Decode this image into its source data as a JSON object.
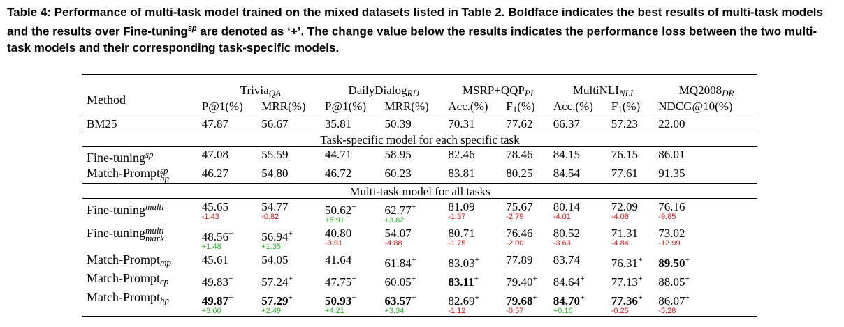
{
  "caption": {
    "part1": "Table 4: Performance of multi-task model trained on the mixed datasets listed in Table 2. Boldface indicates the best results of multi-task models and the results over Fine-tuning",
    "sup": "sp",
    "part2": " are denoted as ‘+’. The change value below the results indicates the performance loss between the two multi-task models and their corresponding task-specific models."
  },
  "header": {
    "method": "Method",
    "groups": [
      {
        "name": "Trivia",
        "sub": "QA"
      },
      {
        "name": "DailyDialog",
        "sub": "RD"
      },
      {
        "name": "MSRP+QQP",
        "sub": "PI"
      },
      {
        "name": "MultiNLI",
        "sub": "NLI"
      },
      {
        "name": "MQ2008",
        "sub": "DR"
      }
    ],
    "metrics": [
      "P@1(%)",
      "MRR(%)",
      "P@1(%)",
      "MRR(%)",
      "Acc.(%)",
      "F",
      "Acc.(%)",
      "F",
      "NDCG@10(%)"
    ],
    "f_sub": "1",
    "f_suffix": "(%)"
  },
  "bm25": {
    "name": "BM25",
    "values": [
      "47.87",
      "56.67",
      "35.81",
      "50.39",
      "70.31",
      "77.62",
      "66.37",
      "57.23",
      "22.00"
    ]
  },
  "section1": "Task-specific model for each specific task",
  "section2": "Multi-task model for all tasks",
  "specific_rows": [
    {
      "name": "Fine-tuning",
      "sup": "sp",
      "values": [
        "47.08",
        "55.59",
        "44.71",
        "58.95",
        "82.46",
        "78.46",
        "84.15",
        "76.15",
        "86.01"
      ]
    },
    {
      "name": "Match-Prompt",
      "sup": "sp",
      "sub": "hp",
      "values": [
        "46.27",
        "54.80",
        "46.72",
        "60.23",
        "83.81",
        "80.25",
        "84.54",
        "77.61",
        "91.35"
      ]
    }
  ],
  "multi_rows": [
    {
      "name": "Fine-tuning",
      "sup": "multi",
      "values": [
        "45.65",
        "54.77",
        "50.62",
        "62.77",
        "81.09",
        "75.67",
        "80.14",
        "72.09",
        "76.16"
      ],
      "plus": [
        false,
        false,
        true,
        true,
        false,
        false,
        false,
        false,
        false
      ],
      "bold": [
        false,
        false,
        false,
        false,
        false,
        false,
        false,
        false,
        false
      ],
      "deltas": [
        "-1.43",
        "-0.82",
        "+5.91",
        "+3.82",
        "-1.37",
        "-2.79",
        "-4.01",
        "-4.06",
        "-9.85"
      ]
    },
    {
      "name": "Fine-tuning",
      "sup": "multi",
      "sub": "mark",
      "values": [
        "48.56",
        "56.94",
        "40.80",
        "54.07",
        "80.71",
        "76.46",
        "80.52",
        "71.31",
        "73.02"
      ],
      "plus": [
        true,
        true,
        false,
        false,
        false,
        false,
        false,
        false,
        false
      ],
      "bold": [
        false,
        false,
        false,
        false,
        false,
        false,
        false,
        false,
        false
      ],
      "deltas": [
        "+1.48",
        "+1.35",
        "-3.91",
        "-4.88",
        "-1.75",
        "-2.00",
        "-3.63",
        "-4.84",
        "-12.99"
      ]
    },
    {
      "name": "Match-Prompt",
      "sub": "mp",
      "values": [
        "45.61",
        "54.05",
        "41.64",
        "61.84",
        "83.03",
        "77.89",
        "83.74",
        "76.31",
        "89.50"
      ],
      "plus": [
        false,
        false,
        false,
        true,
        true,
        false,
        false,
        true,
        true
      ],
      "bold": [
        false,
        false,
        false,
        false,
        false,
        false,
        false,
        false,
        true
      ]
    },
    {
      "name": "Match-Prompt",
      "sub": "cp",
      "values": [
        "49.83",
        "57.24",
        "47.75",
        "60.05",
        "83.11",
        "79.40",
        "84.64",
        "77.13",
        "88.05"
      ],
      "plus": [
        true,
        true,
        true,
        true,
        true,
        true,
        true,
        true,
        true
      ],
      "bold": [
        false,
        false,
        false,
        false,
        true,
        false,
        false,
        false,
        false
      ]
    },
    {
      "name": "Match-Prompt",
      "sub": "hp",
      "values": [
        "49.87",
        "57.29",
        "50.93",
        "63.57",
        "82.69",
        "79.68",
        "84.70",
        "77.36",
        "86.07"
      ],
      "plus": [
        true,
        true,
        true,
        true,
        true,
        true,
        true,
        true,
        true
      ],
      "bold": [
        true,
        true,
        true,
        true,
        false,
        true,
        true,
        true,
        false
      ],
      "deltas": [
        "+3.60",
        "+2.49",
        "+4.21",
        "+3.34",
        "-1.12",
        "-0.57",
        "+0.16",
        "-0.25",
        "-5.28"
      ]
    }
  ],
  "plus_sign": "+"
}
